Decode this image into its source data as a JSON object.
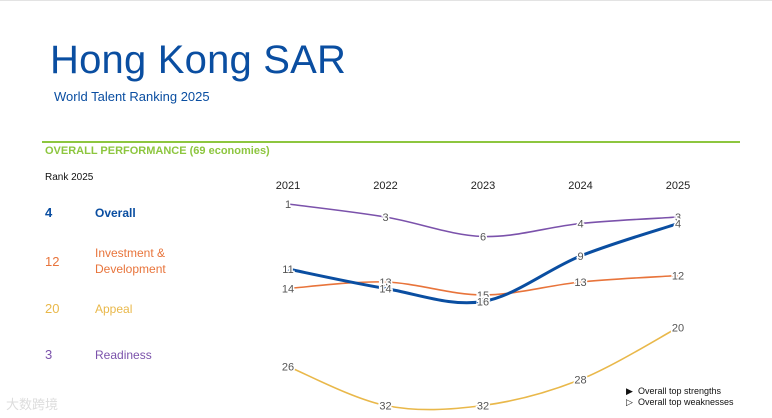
{
  "header": {
    "title": "Hong Kong SAR",
    "subtitle": "World Talent Ranking 2025"
  },
  "section": {
    "title": "OVERALL PERFORMANCE  (69 economies)",
    "rank_header": "Rank 2025"
  },
  "factors": [
    {
      "rank": "4",
      "label_lines": [
        "Overall",
        ""
      ],
      "color": "#0a4ea1"
    },
    {
      "rank": "12",
      "label_lines": [
        "Investment &",
        "Development"
      ],
      "color": "#e8743b"
    },
    {
      "rank": "20",
      "label_lines": [
        "Appeal",
        ""
      ],
      "color": "#e9b84a"
    },
    {
      "rank": "3",
      "label_lines": [
        "Readiness",
        ""
      ],
      "color": "#7b52ab"
    }
  ],
  "legend": {
    "strengths_icon": "▶",
    "strengths": "Overall top strengths",
    "weaknesses_icon": "▷",
    "weaknesses": "Overall top weaknesses"
  },
  "watermark": "大数跨境",
  "chart_data": {
    "type": "line",
    "x": [
      "2021",
      "2022",
      "2023",
      "2024",
      "2025"
    ],
    "y_axis": "rank (inverted, lower is better)",
    "series": [
      {
        "name": "Overall",
        "values": [
          11,
          14,
          16,
          9,
          4
        ],
        "color": "#0a4ea1"
      },
      {
        "name": "Investment & Development",
        "values": [
          14,
          13,
          15,
          13,
          12
        ],
        "color": "#e8743b"
      },
      {
        "name": "Appeal",
        "values": [
          26,
          32,
          32,
          28,
          20
        ],
        "color": "#e9b84a"
      },
      {
        "name": "Readiness",
        "values": [
          1,
          3,
          6,
          4,
          3
        ],
        "color": "#7b52ab"
      }
    ]
  }
}
